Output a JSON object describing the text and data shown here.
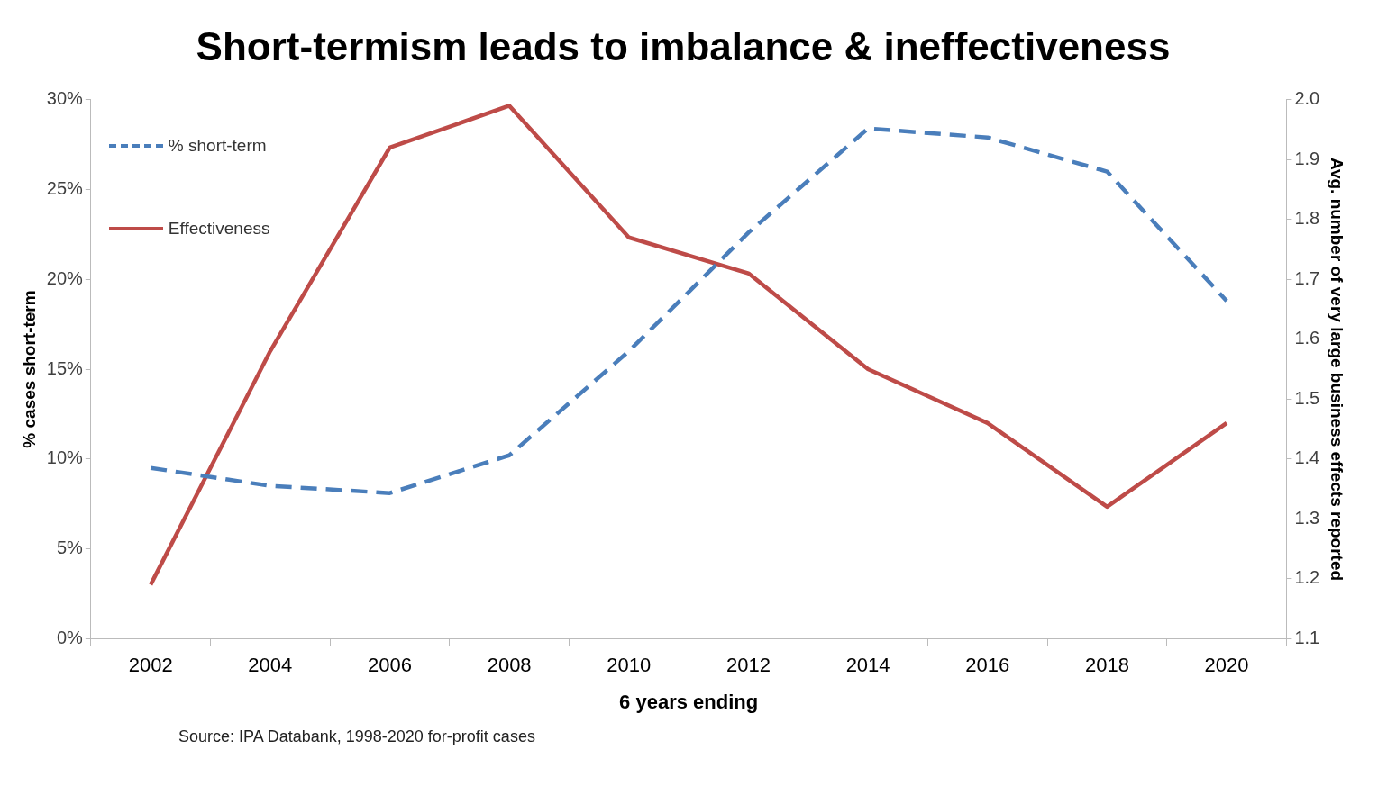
{
  "chart_data": {
    "type": "line",
    "title": "Short-termism leads to imbalance & ineffectiveness",
    "xlabel": "6 years ending",
    "ylabel": "% cases short-term",
    "y2label": "Avg. number of very large business effects reported",
    "categories": [
      "2002",
      "2004",
      "2006",
      "2008",
      "2010",
      "2012",
      "2014",
      "2016",
      "2018",
      "2020"
    ],
    "series": [
      {
        "name": "% short-term",
        "color": "#4a7ebb",
        "line_style": "dashed",
        "values": [
          9.5,
          8.5,
          8.1,
          10.2,
          16.0,
          22.6,
          28.4,
          27.9,
          26.0,
          18.8
        ]
      },
      {
        "name": "Effectiveness",
        "color": "#be4b48",
        "line_style": "solid",
        "axis": "y2",
        "values": [
          1.19,
          1.58,
          1.92,
          1.99,
          1.77,
          1.71,
          1.55,
          1.46,
          1.32,
          1.46
        ]
      }
    ],
    "ylim": [
      0,
      30
    ],
    "yticks": [
      {
        "value": 0,
        "label": "0%"
      },
      {
        "value": 5,
        "label": "5%"
      },
      {
        "value": 10,
        "label": "10%"
      },
      {
        "value": 15,
        "label": "15%"
      },
      {
        "value": 20,
        "label": "20%"
      },
      {
        "value": 25,
        "label": "25%"
      },
      {
        "value": 30,
        "label": "30%"
      }
    ],
    "y2lim": [
      1.1,
      2.0
    ],
    "y2ticks": [
      {
        "value": 1.1,
        "label": "1.1"
      },
      {
        "value": 1.2,
        "label": "1.2"
      },
      {
        "value": 1.3,
        "label": "1.3"
      },
      {
        "value": 1.4,
        "label": "1.4"
      },
      {
        "value": 1.5,
        "label": "1.5"
      },
      {
        "value": 1.6,
        "label": "1.6"
      },
      {
        "value": 1.7,
        "label": "1.7"
      },
      {
        "value": 1.8,
        "label": "1.8"
      },
      {
        "value": 1.9,
        "label": "1.9"
      },
      {
        "value": 2.0,
        "label": "2.0"
      }
    ],
    "grid": false,
    "legend": "top left",
    "marker": "none",
    "annotations": [
      "Source: IPA Databank, 1998-2020 for-profit cases"
    ]
  }
}
